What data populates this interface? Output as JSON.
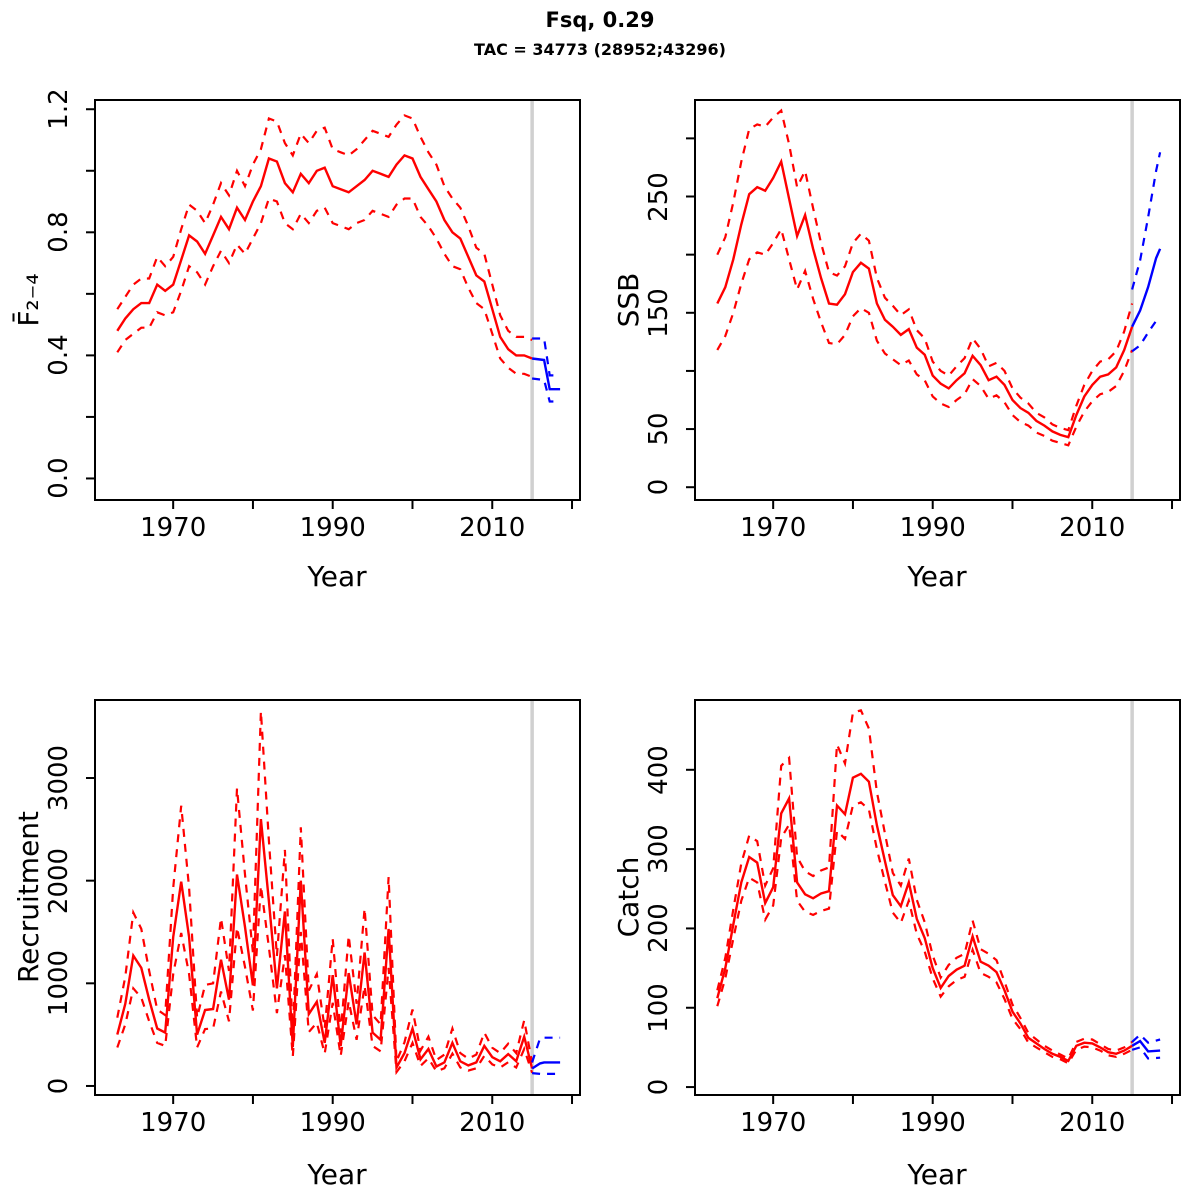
{
  "title": "Fsq, 0.29",
  "subtitle": "TAC = 34773 (28952;43296)",
  "colors": {
    "history": "#ff0000",
    "forecast": "#0000ff",
    "divider": "#d0d0d0",
    "axis": "#000000",
    "background": "#ffffff"
  },
  "divider_year": 2015,
  "x_axis": {
    "label": "Year",
    "range": [
      1960.2,
      2021.0
    ],
    "ticks": [
      1970,
      1980,
      1990,
      2000,
      2010,
      2020
    ],
    "tick_labels": [
      "1970",
      "",
      "1990",
      "",
      "2010",
      ""
    ]
  },
  "years": [
    1963,
    1964,
    1965,
    1966,
    1967,
    1968,
    1969,
    1970,
    1971,
    1972,
    1973,
    1974,
    1975,
    1976,
    1977,
    1978,
    1979,
    1980,
    1981,
    1982,
    1983,
    1984,
    1985,
    1986,
    1987,
    1988,
    1989,
    1990,
    1991,
    1992,
    1993,
    1994,
    1995,
    1996,
    1997,
    1998,
    1999,
    2000,
    2001,
    2002,
    2003,
    2004,
    2005,
    2006,
    2007,
    2008,
    2009,
    2010,
    2011,
    2012,
    2013,
    2014,
    2015
  ],
  "chart_data": [
    {
      "name": "fbar",
      "type": "line",
      "ylabel": "F̄₂₋₄",
      "ylim": [
        -0.07,
        1.23
      ],
      "yticks": [
        0,
        0.2,
        0.4,
        0.6,
        0.8,
        1.0,
        1.2
      ],
      "ytick_labels": [
        "0.0",
        "",
        "0.4",
        "",
        "0.8",
        "",
        "1.2"
      ],
      "median": [
        0.48,
        0.52,
        0.55,
        0.57,
        0.57,
        0.63,
        0.61,
        0.63,
        0.71,
        0.79,
        0.77,
        0.73,
        0.79,
        0.85,
        0.81,
        0.88,
        0.84,
        0.9,
        0.95,
        1.04,
        1.03,
        0.96,
        0.93,
        0.99,
        0.96,
        1.0,
        1.01,
        0.95,
        0.94,
        0.93,
        0.95,
        0.97,
        1.0,
        0.99,
        0.98,
        1.02,
        1.05,
        1.04,
        0.98,
        0.94,
        0.9,
        0.84,
        0.8,
        0.78,
        0.72,
        0.66,
        0.64,
        0.55,
        0.46,
        0.42,
        0.4,
        0.4,
        0.39
      ],
      "upper": [
        0.55,
        0.59,
        0.63,
        0.65,
        0.65,
        0.72,
        0.69,
        0.72,
        0.81,
        0.89,
        0.87,
        0.83,
        0.89,
        0.96,
        0.92,
        1.0,
        0.95,
        1.02,
        1.07,
        1.17,
        1.16,
        1.09,
        1.05,
        1.12,
        1.09,
        1.13,
        1.14,
        1.07,
        1.06,
        1.05,
        1.07,
        1.1,
        1.13,
        1.12,
        1.11,
        1.15,
        1.18,
        1.17,
        1.11,
        1.06,
        1.02,
        0.95,
        0.91,
        0.88,
        0.82,
        0.75,
        0.73,
        0.63,
        0.53,
        0.48,
        0.46,
        0.46,
        0.45
      ],
      "lower": [
        0.41,
        0.45,
        0.47,
        0.49,
        0.49,
        0.54,
        0.53,
        0.54,
        0.61,
        0.69,
        0.67,
        0.63,
        0.69,
        0.74,
        0.7,
        0.76,
        0.73,
        0.78,
        0.83,
        0.91,
        0.9,
        0.83,
        0.81,
        0.86,
        0.83,
        0.87,
        0.88,
        0.83,
        0.82,
        0.81,
        0.83,
        0.84,
        0.87,
        0.86,
        0.85,
        0.89,
        0.91,
        0.91,
        0.85,
        0.82,
        0.78,
        0.73,
        0.69,
        0.68,
        0.62,
        0.57,
        0.55,
        0.47,
        0.39,
        0.36,
        0.34,
        0.34,
        0.33
      ],
      "forecast": {
        "years": [
          2015,
          2016.5,
          2017.2,
          2018.5
        ],
        "median": [
          0.39,
          0.385,
          0.29,
          0.29
        ],
        "upper": [
          0.455,
          0.455,
          0.335,
          0.335
        ],
        "lower": [
          0.325,
          0.32,
          0.25,
          0.25
        ]
      }
    },
    {
      "name": "ssb",
      "type": "line",
      "ylabel": "SSB",
      "ylim": [
        -11,
        333
      ],
      "yticks": [
        0,
        50,
        100,
        150,
        200,
        250,
        300
      ],
      "ytick_labels": [
        "0",
        "50",
        "",
        "150",
        "",
        "250",
        ""
      ],
      "median": [
        158,
        172,
        196,
        226,
        252,
        258,
        255,
        266,
        280,
        248,
        216,
        234,
        205,
        180,
        158,
        157,
        166,
        185,
        193,
        188,
        158,
        144,
        138,
        131,
        136,
        120,
        114,
        96,
        89,
        85,
        92,
        98,
        113,
        105,
        92,
        95,
        88,
        75,
        68,
        64,
        57,
        53,
        48,
        45,
        43,
        62,
        78,
        88,
        95,
        97,
        103,
        118,
        138
      ],
      "upper": [
        200,
        215,
        245,
        280,
        308,
        312,
        310,
        318,
        324,
        295,
        258,
        272,
        240,
        210,
        185,
        182,
        190,
        210,
        218,
        212,
        180,
        163,
        156,
        148,
        153,
        135,
        128,
        108,
        100,
        96,
        104,
        111,
        128,
        119,
        104,
        107,
        100,
        85,
        77,
        72,
        64,
        60,
        54,
        51,
        49,
        70,
        88,
        100,
        108,
        110,
        117,
        134,
        158
      ],
      "lower": [
        118,
        130,
        150,
        175,
        196,
        202,
        200,
        210,
        222,
        196,
        170,
        186,
        162,
        142,
        124,
        123,
        131,
        147,
        154,
        150,
        126,
        115,
        110,
        105,
        109,
        97,
        92,
        78,
        72,
        69,
        75,
        80,
        93,
        87,
        76,
        79,
        73,
        62,
        56,
        53,
        47,
        44,
        40,
        38,
        36,
        52,
        65,
        74,
        80,
        82,
        87,
        100,
        118
      ],
      "forecast": {
        "years": [
          2015,
          2016,
          2017,
          2018,
          2018.5
        ],
        "median": [
          138,
          152,
          172,
          197,
          205
        ],
        "upper": [
          170,
          195,
          232,
          272,
          288
        ],
        "lower": [
          117,
          122,
          133,
          143,
          146
        ]
      }
    },
    {
      "name": "recruitment",
      "type": "line",
      "ylabel": "Recruitment",
      "ylim": [
        -88,
        3760
      ],
      "yticks": [
        0,
        1000,
        2000,
        3000
      ],
      "ytick_labels": [
        "0",
        "1000",
        "2000",
        "3000"
      ],
      "median": [
        500,
        800,
        1270,
        1150,
        840,
        560,
        520,
        1450,
        1990,
        1450,
        500,
        740,
        750,
        1230,
        840,
        2060,
        1550,
        980,
        2600,
        1800,
        950,
        1700,
        380,
        2000,
        700,
        820,
        420,
        1080,
        390,
        1100,
        600,
        1300,
        520,
        450,
        1530,
        180,
        320,
        560,
        260,
        360,
        190,
        230,
        420,
        240,
        200,
        230,
        390,
        280,
        240,
        310,
        240,
        480,
        170
      ],
      "upper": [
        665,
        1065,
        1690,
        1530,
        1120,
        745,
        690,
        1930,
        2730,
        1930,
        665,
        985,
        1000,
        1635,
        1120,
        2900,
        2060,
        1300,
        3650,
        2390,
        1265,
        2300,
        505,
        2520,
        930,
        1090,
        560,
        1435,
        520,
        1465,
        800,
        1730,
        690,
        600,
        2035,
        240,
        425,
        745,
        345,
        480,
        253,
        306,
        560,
        320,
        266,
        306,
        520,
        372,
        320,
        412,
        320,
        640,
        226
      ],
      "lower": [
        375,
        600,
        950,
        860,
        630,
        420,
        390,
        1090,
        1490,
        1090,
        375,
        555,
        560,
        920,
        630,
        1545,
        1160,
        735,
        1950,
        1350,
        710,
        1275,
        285,
        1500,
        525,
        615,
        315,
        810,
        293,
        825,
        450,
        975,
        390,
        338,
        1150,
        135,
        240,
        420,
        195,
        270,
        143,
        172,
        315,
        180,
        150,
        172,
        293,
        210,
        180,
        232,
        180,
        360,
        128
      ],
      "forecast": {
        "years": [
          2015,
          2016,
          2016.5,
          2018.5
        ],
        "median": [
          170,
          220,
          230,
          230
        ],
        "upper": [
          230,
          465,
          470,
          470
        ],
        "lower": [
          125,
          118,
          118,
          118
        ]
      }
    },
    {
      "name": "catch",
      "type": "line",
      "ylabel": "Catch",
      "ylim": [
        -10,
        488
      ],
      "yticks": [
        0,
        100,
        200,
        300,
        400
      ],
      "ytick_labels": [
        "0",
        "100",
        "200",
        "300",
        "400"
      ],
      "median": [
        112,
        150,
        205,
        258,
        290,
        283,
        232,
        252,
        345,
        364,
        258,
        243,
        238,
        244,
        247,
        355,
        344,
        390,
        395,
        385,
        330,
        285,
        242,
        228,
        258,
        212,
        188,
        150,
        125,
        140,
        148,
        153,
        190,
        158,
        153,
        145,
        122,
        95,
        80,
        62,
        55,
        48,
        42,
        38,
        33,
        52,
        56,
        55,
        50,
        44,
        42,
        46,
        52
      ],
      "upper": [
        122,
        163,
        224,
        282,
        317,
        310,
        254,
        276,
        405,
        415,
        290,
        272,
        266,
        273,
        277,
        432,
        408,
        472,
        475,
        452,
        372,
        320,
        270,
        254,
        288,
        236,
        208,
        166,
        138,
        154,
        163,
        168,
        210,
        174,
        168,
        160,
        133,
        104,
        87,
        68,
        60,
        52,
        46,
        41,
        36,
        57,
        61,
        60,
        54,
        48,
        46,
        50,
        57
      ],
      "lower": [
        102,
        137,
        187,
        235,
        264,
        258,
        211,
        229,
        314,
        331,
        235,
        221,
        217,
        222,
        225,
        323,
        313,
        355,
        359,
        350,
        300,
        259,
        220,
        207,
        235,
        193,
        171,
        137,
        114,
        127,
        135,
        139,
        173,
        144,
        139,
        132,
        111,
        86,
        73,
        56,
        50,
        44,
        38,
        35,
        30,
        47,
        51,
        50,
        46,
        40,
        38,
        42,
        47
      ],
      "forecast": {
        "years": [
          2015,
          2016,
          2017,
          2018.5
        ],
        "median": [
          52,
          58,
          45,
          46
        ],
        "upper": [
          57,
          66,
          56,
          60
        ],
        "lower": [
          47,
          50,
          36,
          37
        ]
      }
    }
  ]
}
